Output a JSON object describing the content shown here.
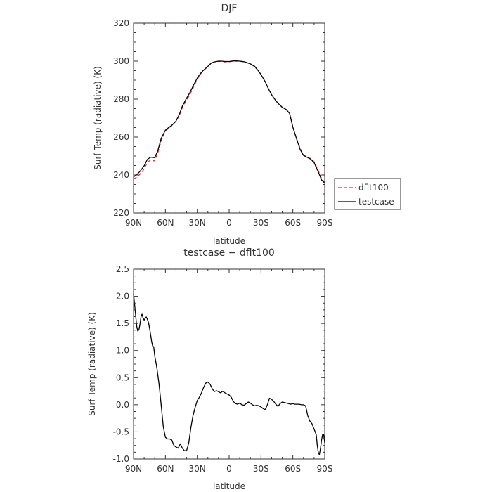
{
  "chart_data": [
    {
      "type": "line",
      "title": "DJF",
      "xlabel": "latitude",
      "ylabel": "Surf Temp (radiative) (K)",
      "xticks": [
        "90N",
        "60N",
        "30N",
        "0",
        "30S",
        "60S",
        "90S"
      ],
      "yticks": [
        "220",
        "240",
        "260",
        "280",
        "300",
        "320"
      ],
      "xlim": [
        90,
        -90
      ],
      "ylim": [
        220,
        320
      ],
      "legend_position": "right",
      "x": [
        90,
        87,
        84,
        80,
        77,
        74,
        70,
        67,
        64,
        60,
        57,
        54,
        50,
        47,
        44,
        40,
        37,
        34,
        30,
        27,
        24,
        20,
        17,
        14,
        10,
        7,
        4,
        0,
        -4,
        -7,
        -10,
        -14,
        -17,
        -20,
        -24,
        -27,
        -30,
        -34,
        -37,
        -40,
        -44,
        -47,
        -50,
        -54,
        -57,
        -60,
        -64,
        -67,
        -70,
        -74,
        -77,
        -80,
        -84,
        -87,
        -90
      ],
      "series": [
        {
          "name": "dflt100",
          "color": "#e03030",
          "dash": "dashed",
          "values": [
            237.9,
            238.8,
            240.4,
            243.2,
            246.6,
            247.9,
            247.4,
            252.0,
            258.0,
            263.0,
            264.7,
            266.0,
            268.4,
            271.3,
            275.5,
            279.7,
            282.3,
            285.8,
            290.5,
            293.2,
            295.0,
            297.3,
            298.9,
            299.6,
            299.9,
            299.9,
            299.6,
            299.7,
            300.0,
            300.0,
            299.9,
            299.7,
            299.1,
            298.5,
            297.1,
            295.2,
            292.9,
            289.1,
            285.5,
            282.3,
            279.1,
            277.3,
            275.7,
            274.4,
            272.4,
            265.3,
            258.5,
            253.9,
            250.6,
            249.3,
            248.6,
            247.0,
            242.2,
            238.0,
            236.2
          ]
        },
        {
          "name": "testcase",
          "color": "#000000",
          "dash": "solid",
          "values": [
            239.0,
            240.1,
            241.9,
            244.8,
            248.2,
            249.4,
            249.1,
            253.1,
            259.3,
            263.6,
            265.0,
            266.2,
            268.4,
            271.8,
            276.4,
            280.6,
            283.4,
            286.8,
            291.1,
            293.5,
            295.3,
            297.3,
            298.9,
            299.6,
            300.0,
            300.0,
            299.8,
            299.8,
            300.1,
            300.1,
            300.0,
            299.7,
            299.2,
            298.6,
            297.3,
            295.3,
            293.0,
            289.1,
            285.5,
            282.3,
            279.1,
            277.3,
            275.7,
            274.4,
            272.4,
            265.2,
            258.2,
            253.3,
            250.3,
            249.2,
            248.3,
            246.5,
            241.5,
            237.4,
            235.7
          ]
        }
      ]
    },
    {
      "type": "line",
      "title": "testcase − dflt100",
      "xlabel": "latitude",
      "ylabel": "Surf Temp (radiative) (K)",
      "xticks": [
        "90N",
        "60N",
        "30N",
        "0",
        "30S",
        "60S",
        "90S"
      ],
      "yticks": [
        "-1.0",
        "-0.5",
        "0.0",
        "0.5",
        "1.0",
        "1.5",
        "2.0",
        "2.5"
      ],
      "xlim": [
        90,
        -90
      ],
      "ylim": [
        -1.0,
        2.5
      ],
      "x": [
        90,
        88.5,
        87,
        86,
        85,
        84,
        83,
        82,
        81,
        80,
        79,
        78,
        77,
        76,
        75,
        74,
        73,
        72,
        71,
        70,
        68,
        66,
        64,
        62,
        60,
        58,
        56,
        54,
        52,
        50,
        48,
        46,
        44,
        42,
        40,
        38,
        36,
        34,
        32,
        30,
        28,
        26,
        24,
        22,
        20,
        18,
        16,
        14,
        12,
        10,
        8,
        6,
        4,
        2,
        0,
        -2,
        -4,
        -6,
        -8,
        -10,
        -12,
        -14,
        -16,
        -18,
        -20,
        -22,
        -24,
        -26,
        -28,
        -30,
        -32,
        -34,
        -36,
        -38,
        -40,
        -42,
        -44,
        -46,
        -48,
        -50,
        -52,
        -54,
        -56,
        -58,
        -60,
        -62,
        -64,
        -66,
        -68,
        -70,
        -72,
        -74,
        -76,
        -78,
        -79,
        -80,
        -81,
        -82,
        -83,
        -84,
        -85,
        -86,
        -87,
        -88,
        -89,
        -90
      ],
      "series": [
        {
          "name": "testcase − dflt100",
          "color": "#000000",
          "dash": "solid",
          "values": [
            2.05,
            1.75,
            1.45,
            1.36,
            1.38,
            1.48,
            1.62,
            1.67,
            1.6,
            1.56,
            1.6,
            1.62,
            1.58,
            1.52,
            1.42,
            1.3,
            1.17,
            1.08,
            1.07,
            0.9,
            0.68,
            0.38,
            0.0,
            -0.4,
            -0.6,
            -0.63,
            -0.63,
            -0.65,
            -0.75,
            -0.78,
            -0.8,
            -0.72,
            -0.8,
            -0.85,
            -0.84,
            -0.7,
            -0.42,
            -0.2,
            -0.05,
            0.08,
            0.14,
            0.22,
            0.32,
            0.4,
            0.42,
            0.38,
            0.3,
            0.24,
            0.26,
            0.24,
            0.22,
            0.25,
            0.22,
            0.2,
            0.18,
            0.14,
            0.06,
            0.02,
            0.01,
            0.03,
            0.0,
            -0.01,
            0.02,
            0.05,
            0.03,
            0.0,
            -0.02,
            -0.01,
            -0.02,
            -0.04,
            -0.07,
            -0.09,
            0.0,
            0.12,
            0.1,
            0.06,
            0.01,
            -0.03,
            0.02,
            0.05,
            0.04,
            0.03,
            0.02,
            0.01,
            0.02,
            0.01,
            0.01,
            0.01,
            0.0,
            0.0,
            -0.02,
            -0.2,
            -0.3,
            -0.35,
            -0.4,
            -0.45,
            -0.5,
            -0.55,
            -0.75,
            -0.88,
            -0.92,
            -0.8,
            -0.65,
            -0.55,
            -0.55,
            -0.7
          ]
        }
      ]
    }
  ]
}
